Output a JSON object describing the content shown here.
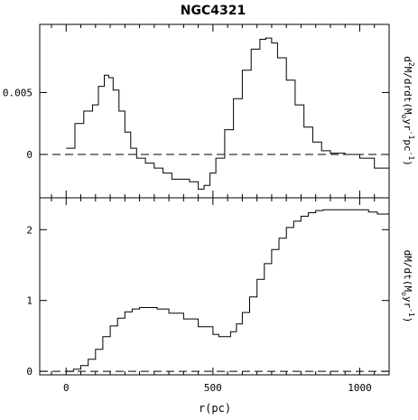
{
  "title": "NGC4321",
  "chart_data": [
    {
      "type": "line",
      "panel": "top",
      "title": "NGC4321",
      "xlabel": "",
      "ylabel": "d²M/drdt(M⊙yr⁻¹pc⁻¹)",
      "ylabel_parts": {
        "pre": "d",
        "sup1": "2",
        "mid1": "M/drdt(M",
        "sub": "o",
        "mid2": "yr",
        "sup2": "-1",
        "mid3": "pc",
        "sup3": "-1",
        "post": ")"
      },
      "xlim": [
        -90,
        1100
      ],
      "ylim": [
        -0.0035,
        0.0105
      ],
      "yticks": [
        0,
        0.005
      ],
      "ytick_labels": [
        "0",
        "0.005"
      ],
      "reference_line": {
        "y": 0,
        "style": "dashed"
      },
      "series": [
        {
          "style": "steps",
          "x": [
            0,
            30,
            60,
            90,
            110,
            130,
            145,
            160,
            180,
            200,
            220,
            240,
            270,
            300,
            330,
            360,
            390,
            420,
            450,
            470,
            490,
            510,
            540,
            570,
            600,
            630,
            660,
            680,
            700,
            720,
            750,
            780,
            810,
            840,
            870,
            900,
            950,
            1000,
            1050,
            1100
          ],
          "y": [
            0.0005,
            0.0025,
            0.0035,
            0.004,
            0.0055,
            0.0064,
            0.0062,
            0.0052,
            0.0035,
            0.0018,
            0.0005,
            -0.0003,
            -0.0007,
            -0.0011,
            -0.0015,
            -0.002,
            -0.002,
            -0.0022,
            -0.0028,
            -0.0025,
            -0.0015,
            -0.0003,
            0.002,
            0.0045,
            0.0068,
            0.0085,
            0.0093,
            0.0094,
            0.009,
            0.0078,
            0.006,
            0.004,
            0.0022,
            0.001,
            0.0003,
            0.0001,
            0.0,
            -0.0003,
            -0.0011,
            -0.0015
          ]
        }
      ]
    },
    {
      "type": "line",
      "panel": "bottom",
      "xlabel": "r(pc)",
      "ylabel": "dM/dt(M⊙yr⁻¹)",
      "ylabel_parts": {
        "pre": "dM/dt(M",
        "sub": "o",
        "mid": "yr",
        "sup": "-1",
        "post": ")"
      },
      "xlim": [
        -90,
        1100
      ],
      "ylim": [
        -0.05,
        2.45
      ],
      "xticks": [
        0,
        500,
        1000
      ],
      "xtick_labels": [
        "0",
        "500",
        "1000"
      ],
      "yticks": [
        0,
        1,
        2
      ],
      "ytick_labels": [
        "0",
        "1",
        "2"
      ],
      "reference_line": {
        "y": 0,
        "style": "dashed"
      },
      "series": [
        {
          "style": "steps",
          "x": [
            0,
            25,
            50,
            75,
            100,
            125,
            150,
            175,
            200,
            225,
            250,
            280,
            310,
            350,
            400,
            450,
            500,
            520,
            540,
            560,
            580,
            600,
            625,
            650,
            675,
            700,
            725,
            750,
            775,
            800,
            825,
            850,
            875,
            900,
            950,
            1000,
            1030,
            1060,
            1100
          ],
          "y": [
            0.0,
            0.03,
            0.08,
            0.17,
            0.31,
            0.49,
            0.64,
            0.75,
            0.84,
            0.88,
            0.9,
            0.9,
            0.88,
            0.82,
            0.74,
            0.63,
            0.52,
            0.49,
            0.49,
            0.56,
            0.67,
            0.83,
            1.05,
            1.3,
            1.52,
            1.72,
            1.88,
            2.03,
            2.12,
            2.19,
            2.24,
            2.27,
            2.28,
            2.28,
            2.28,
            2.28,
            2.25,
            2.22,
            2.17
          ]
        }
      ]
    }
  ]
}
